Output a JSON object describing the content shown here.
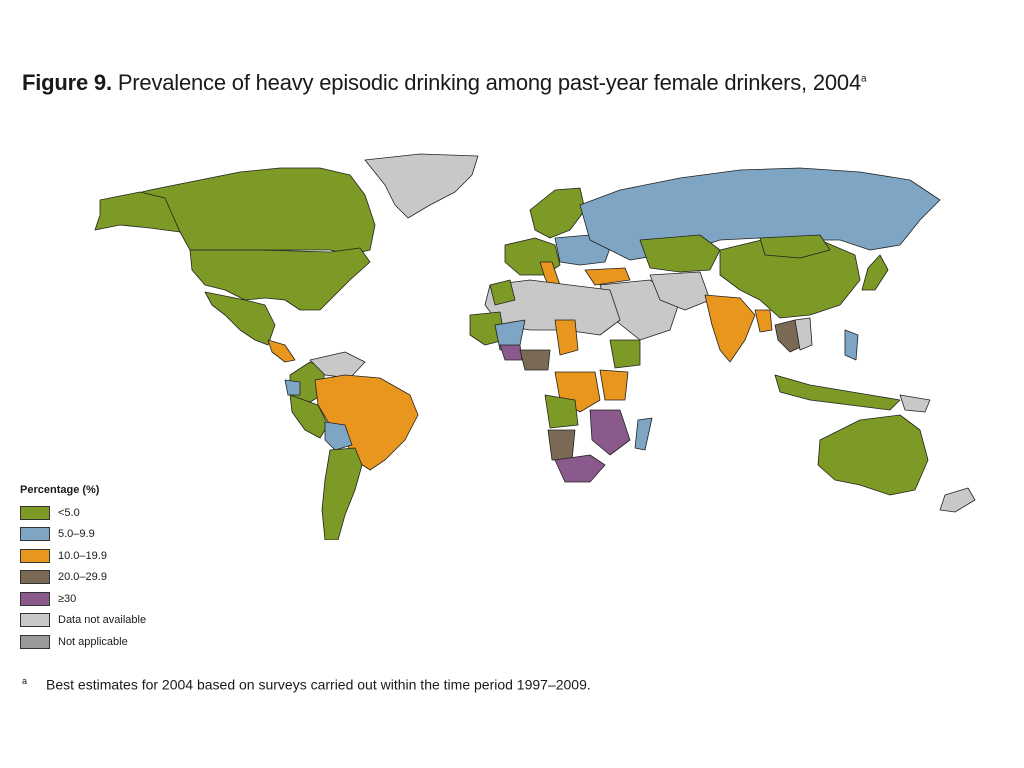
{
  "title": {
    "label": "Figure 9.",
    "text": "Prevalence of heavy episodic drinking among past-year female drinkers, 2004",
    "footnote_mark": "a"
  },
  "legend": {
    "title": "Percentage (%)",
    "items": [
      {
        "label": "<5.0",
        "color": "#7c9a25"
      },
      {
        "label": "5.0–9.9",
        "color": "#7ea5c3"
      },
      {
        "label": "10.0–19.9",
        "color": "#e8961e"
      },
      {
        "label": "20.0–29.9",
        "color": "#7a6a55"
      },
      {
        "label": "≥30",
        "color": "#8b5a8c"
      },
      {
        "label": "Data not available",
        "color": "#c8c8c8"
      },
      {
        "label": "Not applicable",
        "color": "#9a9a9a"
      }
    ]
  },
  "footnote": {
    "mark": "a",
    "text": "Best estimates for 2004 based on surveys carried out within the time period 1997–2009."
  },
  "map_colors": {
    "green": "#7c9a25",
    "blue": "#7ea5c3",
    "orange": "#e8961e",
    "brown": "#7a6a55",
    "purple": "#8b5a8c",
    "na": "#c8c8c8",
    "notapp": "#9a9a9a"
  }
}
